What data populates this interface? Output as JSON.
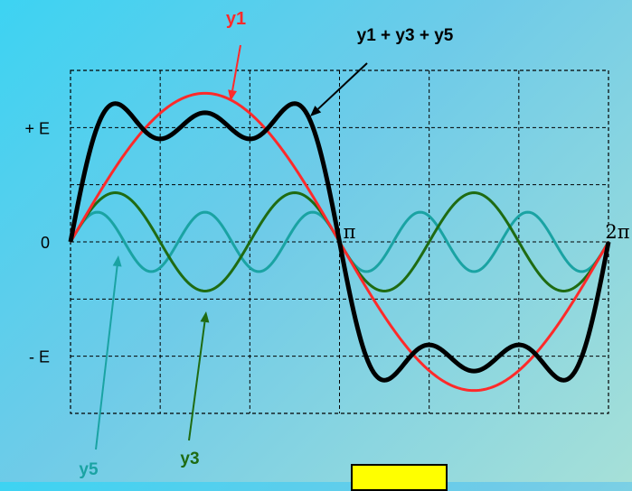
{
  "chart_data": {
    "type": "line",
    "title": "",
    "xlabel": "",
    "ylabel": "",
    "xlim": [
      0,
      6.2832
    ],
    "ylim": [
      -1.5,
      1.5
    ],
    "grid": true,
    "x_tick_labels": [
      {
        "x": 3.1416,
        "label": "π"
      },
      {
        "x": 6.2832,
        "label": "2π"
      }
    ],
    "y_tick_labels": [
      {
        "y": 1.0,
        "label": "+ E"
      },
      {
        "y": 0.0,
        "label": "0"
      },
      {
        "y": -1.0,
        "label": "- E"
      }
    ],
    "series": [
      {
        "name": "y1",
        "formula": "1.3*sin(x)",
        "color": "#ff2a2a"
      },
      {
        "name": "y3",
        "formula": "0.43*sin(3x)",
        "color": "#1f6b12"
      },
      {
        "name": "y5",
        "formula": "0.26*sin(5x)",
        "color": "#1aa3a3"
      },
      {
        "name": "y1 + y3 + y5",
        "formula": "1.3*sin(x) + 0.43*sin(3x) + 0.26*sin(5x)",
        "color": "#000000"
      }
    ],
    "annotations": [
      {
        "text": "y1",
        "color": "#ff2a2a",
        "points_to": "y1"
      },
      {
        "text": "y1 + y3 + y5",
        "color": "#000000",
        "points_to": "y1 + y3 + y5"
      },
      {
        "text": "y5",
        "color": "#1aa3a3",
        "points_to": "y5"
      },
      {
        "text": "y3",
        "color": "#1f6b12",
        "points_to": "y3"
      }
    ]
  }
}
